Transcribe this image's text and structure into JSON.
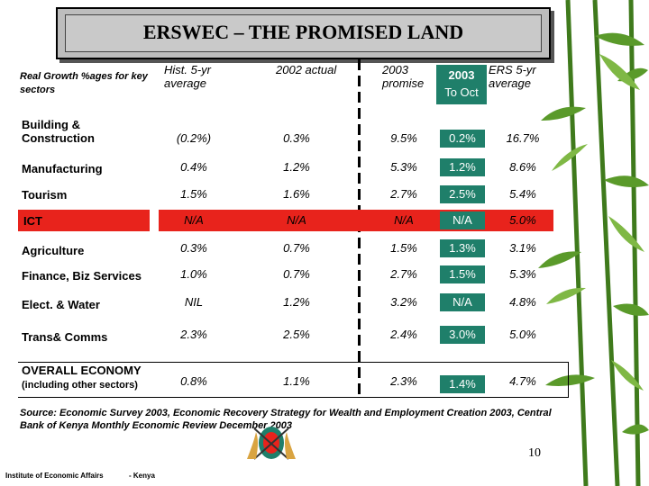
{
  "title": "ERSWEC – THE PROMISED LAND",
  "header": {
    "sector": "Real Growth %ages    for key sectors",
    "hist": "Hist. 5-yr average",
    "actual2002": "2002 actual",
    "promise2003": "2003 promise",
    "box2003_line1": "2003",
    "box2003_line2": "To Oct",
    "ers": "ERS 5-yr average"
  },
  "rows": [
    {
      "label": "Building & Construction",
      "hist": "(0.2%)",
      "actual": "0.3%",
      "promise": "9.5%",
      "oct": "0.2%",
      "ers": "16.7%"
    },
    {
      "label": "Manufacturing",
      "hist": "0.4%",
      "actual": "1.2%",
      "promise": "5.3%",
      "oct": "1.2%",
      "ers": "8.6%"
    },
    {
      "label": "Tourism",
      "hist": "1.5%",
      "actual": "1.6%",
      "promise": "2.7%",
      "oct": "2.5%",
      "ers": "5.4%"
    },
    {
      "label": "ICT",
      "hist": "N/A",
      "actual": "N/A",
      "promise": "N/A",
      "oct": "N/A",
      "ers": "5.0%"
    },
    {
      "label": "Agriculture",
      "hist": "0.3%",
      "actual": "0.7%",
      "promise": "1.5%",
      "oct": "1.3%",
      "ers": "3.1%"
    },
    {
      "label": "Finance, Biz Services",
      "hist": "1.0%",
      "actual": "0.7%",
      "promise": "2.7%",
      "oct": "1.5%",
      "ers": "5.3%"
    },
    {
      "label": "Elect. & Water",
      "hist": "NIL",
      "actual": "1.2%",
      "promise": "3.2%",
      "oct": "N/A",
      "ers": "4.8%"
    },
    {
      "label": "Trans& Comms",
      "hist": "2.3%",
      "actual": "2.5%",
      "promise": "2.4%",
      "oct": "3.0%",
      "ers": "5.0%"
    }
  ],
  "overall": {
    "label": "OVERALL ECONOMY",
    "sub": "(including other sectors)",
    "hist": "0.8%",
    "actual": "1.1%",
    "promise": "2.3%",
    "oct": "1.4%",
    "ers": "4.7%"
  },
  "source": "Source: Economic Survey 2003, Economic Recovery Strategy for Wealth and Employment Creation 2003, Central Bank of Kenya  Monthly Economic Review December 2003",
  "page_number": "10",
  "footer_org": "Institute of Economic Affairs",
  "footer_country": "- Kenya",
  "colors": {
    "green": "#1f7f6a",
    "red": "#e8231c"
  }
}
